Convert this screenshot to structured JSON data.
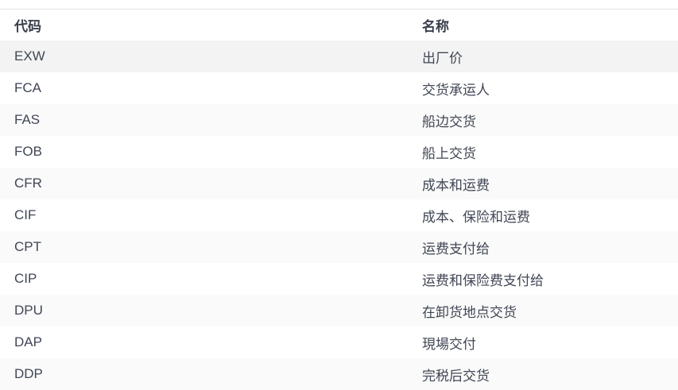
{
  "table": {
    "headers": [
      "代码",
      "名称"
    ],
    "rows": [
      {
        "code": "EXW",
        "name": "出厂价"
      },
      {
        "code": "FCA",
        "name": "交货承运人"
      },
      {
        "code": "FAS",
        "name": "船边交货"
      },
      {
        "code": "FOB",
        "name": "船上交货"
      },
      {
        "code": "CFR",
        "name": "成本和运费"
      },
      {
        "code": "CIF",
        "name": "成本、保险和运费"
      },
      {
        "code": "CPT",
        "name": "运费支付给"
      },
      {
        "code": "CIP",
        "name": "运费和保险费支付给"
      },
      {
        "code": "DPU",
        "name": "在卸货地点交货"
      },
      {
        "code": "DAP",
        "name": "現場交付"
      },
      {
        "code": "DDP",
        "name": "完税后交货"
      }
    ]
  }
}
